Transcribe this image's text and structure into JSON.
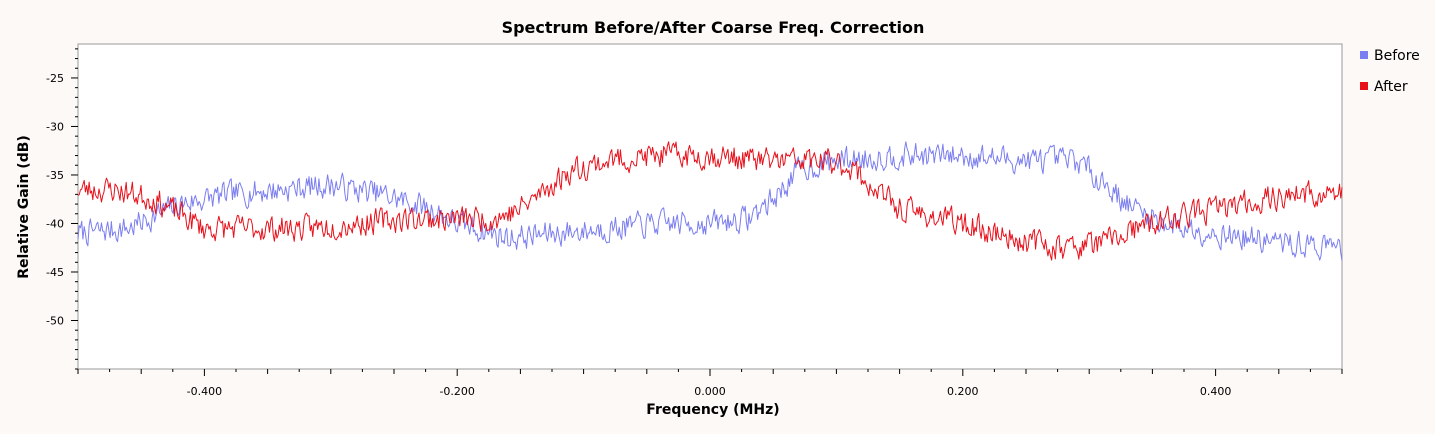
{
  "chart_data": {
    "type": "line",
    "title": "Spectrum Before/After Coarse Freq. Correction",
    "xlabel": "Frequency (MHz)",
    "ylabel": "Relative Gain (dB)",
    "xlim": [
      -0.5,
      0.5
    ],
    "ylim": [
      -55,
      -21.5
    ],
    "x_major_ticks": [
      -0.4,
      -0.2,
      0.0,
      0.2,
      0.4
    ],
    "x_tick_labels": [
      "-0.400",
      "-0.200",
      "0.000",
      "0.200",
      "0.400"
    ],
    "y_major_ticks": [
      -25,
      -30,
      -35,
      -40,
      -45,
      -50
    ],
    "y_tick_labels": [
      "-25",
      "-30",
      "-35",
      "-40",
      "-45",
      "-50"
    ],
    "grid": false,
    "legend_position": "right",
    "series": [
      {
        "name": "Before",
        "color": "#7b7ef0",
        "noise": 1.3,
        "seed": 7,
        "envelope": [
          [
            -0.5,
            -41
          ],
          [
            -0.46,
            -40.5
          ],
          [
            -0.42,
            -38
          ],
          [
            -0.38,
            -37
          ],
          [
            -0.34,
            -36.5
          ],
          [
            -0.3,
            -36
          ],
          [
            -0.26,
            -37
          ],
          [
            -0.22,
            -38.5
          ],
          [
            -0.2,
            -40
          ],
          [
            -0.16,
            -41.5
          ],
          [
            -0.12,
            -41
          ],
          [
            -0.08,
            -40.5
          ],
          [
            -0.04,
            -40
          ],
          [
            0.0,
            -40
          ],
          [
            0.03,
            -39.5
          ],
          [
            0.05,
            -37.5
          ],
          [
            0.07,
            -34.5
          ],
          [
            0.1,
            -33.5
          ],
          [
            0.15,
            -33
          ],
          [
            0.2,
            -33
          ],
          [
            0.25,
            -33.5
          ],
          [
            0.29,
            -33.5
          ],
          [
            0.31,
            -35.5
          ],
          [
            0.33,
            -38
          ],
          [
            0.36,
            -40
          ],
          [
            0.4,
            -41
          ],
          [
            0.45,
            -42
          ],
          [
            0.5,
            -42.5
          ]
        ]
      },
      {
        "name": "After",
        "color": "#e8101a",
        "noise": 1.3,
        "seed": 23,
        "envelope": [
          [
            -0.5,
            -36.5
          ],
          [
            -0.47,
            -36.5
          ],
          [
            -0.44,
            -37.5
          ],
          [
            -0.42,
            -39
          ],
          [
            -0.4,
            -40.5
          ],
          [
            -0.36,
            -40.5
          ],
          [
            -0.32,
            -40.5
          ],
          [
            -0.28,
            -40
          ],
          [
            -0.24,
            -39.5
          ],
          [
            -0.2,
            -39.5
          ],
          [
            -0.17,
            -39.5
          ],
          [
            -0.15,
            -38.5
          ],
          [
            -0.13,
            -36.5
          ],
          [
            -0.11,
            -34.5
          ],
          [
            -0.08,
            -33.5
          ],
          [
            -0.04,
            -33
          ],
          [
            0.0,
            -33
          ],
          [
            0.04,
            -33.5
          ],
          [
            0.08,
            -33.5
          ],
          [
            0.11,
            -34
          ],
          [
            0.13,
            -36.5
          ],
          [
            0.15,
            -38.5
          ],
          [
            0.2,
            -40
          ],
          [
            0.24,
            -41.5
          ],
          [
            0.28,
            -42.5
          ],
          [
            0.31,
            -42
          ],
          [
            0.34,
            -40.5
          ],
          [
            0.38,
            -39
          ],
          [
            0.42,
            -38
          ],
          [
            0.46,
            -37
          ],
          [
            0.5,
            -37
          ]
        ]
      }
    ]
  }
}
